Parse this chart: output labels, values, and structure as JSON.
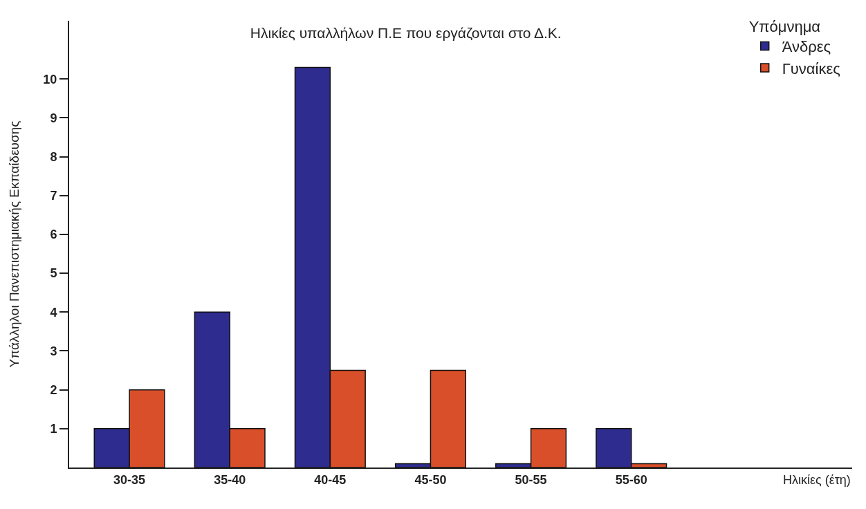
{
  "chart_data": {
    "type": "bar",
    "title": "Ηλικίες υπαλλήλων Π.Ε που εργάζονται στο Δ.Κ.",
    "ylabel": "Υπάλληλοι Πανεπιστημιακής Εκπαίδευσης",
    "legend_title": "Υπόμνημα",
    "annotations": [
      "Ηλικίες (έτη)"
    ],
    "categories": [
      "30-35",
      "35-40",
      "40-45",
      "45-50",
      "50-55",
      "55-60"
    ],
    "series": [
      {
        "name": "Άνδρες",
        "color": "#2f2c8f",
        "values": [
          1,
          4,
          10.3,
          0.1,
          0.1,
          1
        ]
      },
      {
        "name": "Γυναίκες",
        "color": "#d94f2a",
        "values": [
          2,
          1,
          2.5,
          2.5,
          1,
          0.1
        ]
      }
    ],
    "ylim": [
      0,
      11.5
    ],
    "yticks": [
      1,
      2,
      3,
      4,
      5,
      6,
      7,
      8,
      9,
      10
    ],
    "legend": "top right"
  }
}
